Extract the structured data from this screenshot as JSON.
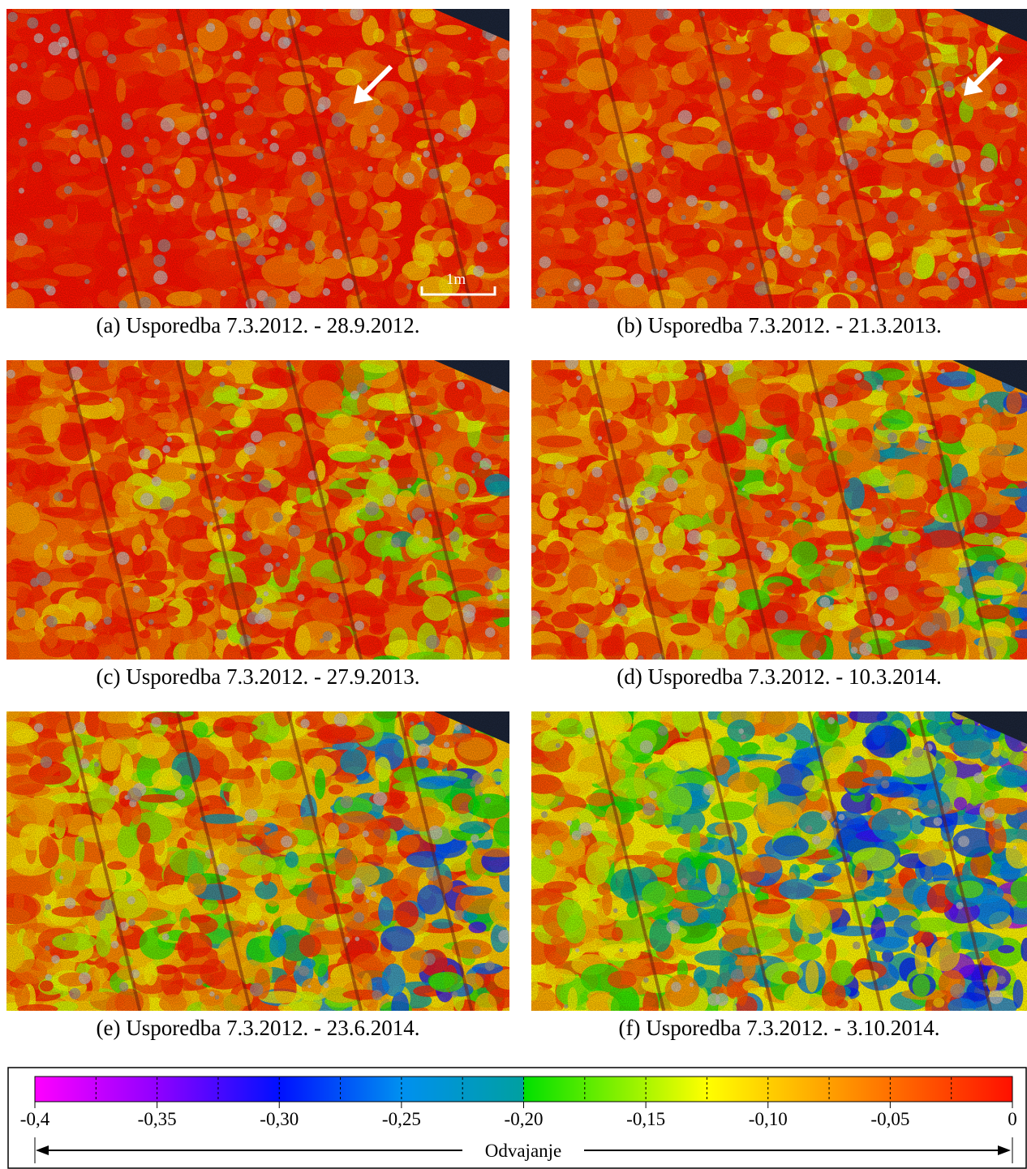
{
  "panels": [
    {
      "caption": "(a) Usporedba 7.3.2012. - 28.9.2012."
    },
    {
      "caption": "(b) Usporedba 7.3.2012. - 21.3.2013."
    },
    {
      "caption": "(c) Usporedba 7.3.2012. - 27.9.2013."
    },
    {
      "caption": "(d) Usporedba 7.3.2012. - 10.3.2014."
    },
    {
      "caption": "(e) Usporedba 7.3.2012. - 23.6.2014."
    },
    {
      "caption": "(f) Usporedba 7.3.2012. - 3.10.2014."
    }
  ],
  "scale_bar": "1m",
  "colorbar": {
    "label": "Odvajanje",
    "lim": [
      -0.4,
      0
    ],
    "ticks": [
      {
        "value": -0.4,
        "label": "-0,4"
      },
      {
        "value": -0.35,
        "label": "-0,35"
      },
      {
        "value": -0.3,
        "label": "-0,30"
      },
      {
        "value": -0.25,
        "label": "-0,25"
      },
      {
        "value": -0.2,
        "label": "-0,20"
      },
      {
        "value": -0.15,
        "label": "-0,15"
      },
      {
        "value": -0.1,
        "label": "-0,10"
      },
      {
        "value": -0.05,
        "label": "-0,05"
      },
      0
    ]
  }
}
